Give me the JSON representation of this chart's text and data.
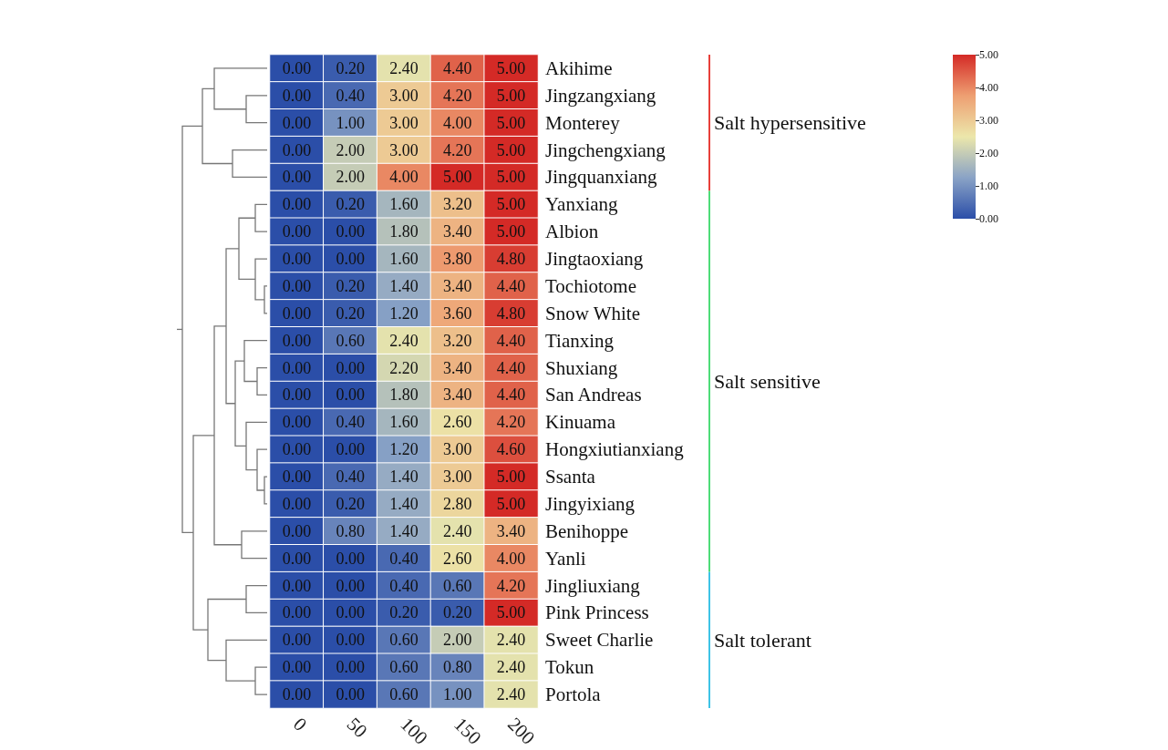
{
  "chart_data": {
    "type": "heatmap",
    "categories": [
      "0",
      "50",
      "100",
      "150",
      "200"
    ],
    "y_categories": [
      "Akihime",
      "Jingzangxiang",
      "Monterey",
      "Jingchengxiang",
      "Jingquanxiang",
      "Yanxiang",
      "Albion",
      "Jingtaoxiang",
      "Tochiotome",
      "Snow White",
      "Tianxing",
      "Shuxiang",
      "San Andreas",
      "Kinuama",
      "Hongxiutianxiang",
      "Ssanta",
      "Jingyixiang",
      "Benihoppe",
      "Yanli",
      "Jingliuxiang",
      "Pink Princess",
      "Sweet Charlie",
      "Tokun",
      "Portola"
    ],
    "cells": [
      [
        0,
        0.2,
        2.4,
        4.4,
        5
      ],
      [
        0,
        0.4,
        3,
        4.2,
        5
      ],
      [
        0,
        1,
        3,
        4,
        5
      ],
      [
        0,
        2,
        3,
        4.2,
        5
      ],
      [
        0,
        2,
        4,
        5,
        5
      ],
      [
        0,
        0.2,
        1.6,
        3.2,
        5
      ],
      [
        0,
        0,
        1.8,
        3.4,
        5
      ],
      [
        0,
        0,
        1.6,
        3.8,
        4.8
      ],
      [
        0,
        0.2,
        1.4,
        3.4,
        4.4
      ],
      [
        0,
        0.2,
        1.2,
        3.6,
        4.8
      ],
      [
        0,
        0.6,
        2.4,
        3.2,
        4.4
      ],
      [
        0,
        0,
        2.2,
        3.4,
        4.4
      ],
      [
        0,
        0,
        1.8,
        3.4,
        4.4
      ],
      [
        0,
        0.4,
        1.6,
        2.6,
        4.2
      ],
      [
        0,
        0,
        1.2,
        3,
        4.6
      ],
      [
        0,
        0.4,
        1.4,
        3,
        5
      ],
      [
        0,
        0.2,
        1.4,
        2.8,
        5
      ],
      [
        0,
        0.8,
        1.4,
        2.4,
        3.4
      ],
      [
        0,
        0,
        0.4,
        2.6,
        4
      ],
      [
        0,
        0,
        0.4,
        0.6,
        4.2
      ],
      [
        0,
        0,
        0.2,
        0.2,
        5
      ],
      [
        0,
        0,
        0.6,
        2,
        2.4
      ],
      [
        0,
        0,
        0.6,
        0.8,
        2.4
      ],
      [
        0,
        0,
        0.6,
        1,
        2.4
      ]
    ],
    "cell_labels": [
      [
        "0.00",
        "0.20",
        "2.40",
        "4.40",
        "5.00"
      ],
      [
        "0.00",
        "0.40",
        "3.00",
        "4.20",
        "5.00"
      ],
      [
        "0.00",
        "1.00",
        "3.00",
        "4.00",
        "5.00"
      ],
      [
        "0.00",
        "2.00",
        "3.00",
        "4.20",
        "5.00"
      ],
      [
        "0.00",
        "2.00",
        "4.00",
        "5.00",
        "5.00"
      ],
      [
        "0.00",
        "0.20",
        "1.60",
        "3.20",
        "5.00"
      ],
      [
        "0.00",
        "0.00",
        "1.80",
        "3.40",
        "5.00"
      ],
      [
        "0.00",
        "0.00",
        "1.60",
        "3.80",
        "4.80"
      ],
      [
        "0.00",
        "0.20",
        "1.40",
        "3.40",
        "4.40"
      ],
      [
        "0.00",
        "0.20",
        "1.20",
        "3.60",
        "4.80"
      ],
      [
        "0.00",
        "0.60",
        "2.40",
        "3.20",
        "4.40"
      ],
      [
        "0.00",
        "0.00",
        "2.20",
        "3.40",
        "4.40"
      ],
      [
        "0.00",
        "0.00",
        "1.80",
        "3.40",
        "4.40"
      ],
      [
        "0.00",
        "0.40",
        "1.60",
        "2.60",
        "4.20"
      ],
      [
        "0.00",
        "0.00",
        "1.20",
        "3.00",
        "4.60"
      ],
      [
        "0.00",
        "0.40",
        "1.40",
        "3.00",
        "5.00"
      ],
      [
        "0.00",
        "0.20",
        "1.40",
        "2.80",
        "5.00"
      ],
      [
        "0.00",
        "0.80",
        "1.40",
        "2.40",
        "3.40"
      ],
      [
        "0.00",
        "0.00",
        "0.40",
        "2.60",
        "4.00"
      ],
      [
        "0.00",
        "0.00",
        "0.40",
        "0.60",
        "4.20"
      ],
      [
        "0.00",
        "0.00",
        "0.20",
        "0.20",
        "5.00"
      ],
      [
        "0.00",
        "0.00",
        "0.60",
        "2.00",
        "2.40"
      ],
      [
        "0.00",
        "0.00",
        "0.60",
        "0.80",
        "2.40"
      ],
      [
        "0.00",
        "0.00",
        "0.60",
        "1.00",
        "2.40"
      ]
    ],
    "clim": [
      0,
      5
    ],
    "cticks": [
      {
        "value": 0,
        "label": "0.00"
      },
      {
        "value": 1,
        "label": "1.00"
      },
      {
        "value": 2,
        "label": "2.00"
      },
      {
        "value": 3,
        "label": "3.00"
      },
      {
        "value": 4,
        "label": "4.00"
      },
      {
        "value": 5,
        "label": "5.00"
      }
    ],
    "annotations": [
      "Salt hypersensitive",
      "Salt sensitive",
      "Salt tolerant"
    ]
  }
}
